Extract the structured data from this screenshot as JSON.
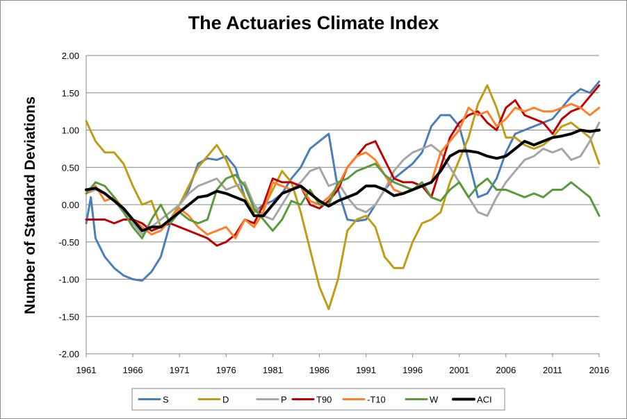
{
  "chart_data": {
    "type": "line",
    "title": "The Actuaries Climate Index",
    "xlabel": "",
    "ylabel": "Number of Standard Deviations",
    "xlim": [
      1961,
      2016
    ],
    "ylim": [
      -2.0,
      2.0
    ],
    "x_ticks": [
      "1961",
      "1966",
      "1971",
      "1976",
      "1981",
      "1986",
      "1991",
      "1996",
      "2001",
      "2006",
      "2011",
      "2016"
    ],
    "y_ticks": [
      "2.00",
      "1.50",
      "1.00",
      "0.50",
      "0.00",
      "-0.50",
      "-1.00",
      "-1.50",
      "-2.00"
    ],
    "grid": true,
    "legend_position": "bottom",
    "series": [
      {
        "name": "S",
        "color": "#4a7ebb",
        "x": [
          1961,
          1961.5,
          1962,
          1963,
          1964,
          1965,
          1966,
          1967,
          1968,
          1969,
          1970,
          1971,
          1972,
          1973,
          1974,
          1975,
          1976,
          1977,
          1978,
          1979,
          1980,
          1981,
          1982,
          1983,
          1984,
          1985,
          1986,
          1987,
          1988,
          1989,
          1990,
          1991,
          1992,
          1993,
          1994,
          1995,
          1996,
          1997,
          1998,
          1999,
          2000,
          2001,
          2002,
          2003,
          2004,
          2005,
          2006,
          2007,
          2008,
          2009,
          2010,
          2011,
          2012,
          2013,
          2014,
          2015,
          2016
        ],
        "y": [
          -0.25,
          0.1,
          -0.45,
          -0.7,
          -0.85,
          -0.95,
          -1.0,
          -1.02,
          -0.9,
          -0.7,
          -0.25,
          0.0,
          0.2,
          0.55,
          0.62,
          0.6,
          0.65,
          0.5,
          0.1,
          -0.1,
          0.0,
          0.05,
          0.15,
          0.35,
          0.5,
          0.75,
          0.85,
          0.95,
          0.2,
          -0.2,
          -0.22,
          -0.2,
          0.0,
          0.2,
          0.35,
          0.45,
          0.55,
          0.7,
          1.05,
          1.2,
          1.2,
          1.05,
          0.6,
          0.1,
          0.15,
          0.35,
          0.7,
          0.95,
          1.0,
          1.05,
          1.1,
          1.15,
          1.3,
          1.45,
          1.55,
          1.5,
          1.65
        ]
      },
      {
        "name": "D",
        "color": "#c09b14",
        "x": [
          1961,
          1962,
          1963,
          1964,
          1965,
          1966,
          1967,
          1968,
          1969,
          1970,
          1971,
          1972,
          1973,
          1974,
          1975,
          1976,
          1977,
          1978,
          1979,
          1980,
          1981,
          1982,
          1983,
          1984,
          1985,
          1986,
          1987,
          1988,
          1989,
          1990,
          1991,
          1992,
          1993,
          1994,
          1995,
          1996,
          1997,
          1998,
          1999,
          2000,
          2001,
          2002,
          2003,
          2004,
          2005,
          2006,
          2007,
          2008,
          2009,
          2010,
          2011,
          2012,
          2013,
          2014,
          2015,
          2016
        ],
        "y": [
          1.12,
          0.85,
          0.7,
          0.7,
          0.55,
          0.25,
          0.0,
          0.05,
          -0.3,
          -0.2,
          0.0,
          0.25,
          0.5,
          0.65,
          0.8,
          0.6,
          0.3,
          0.1,
          -0.1,
          -0.05,
          0.2,
          0.45,
          0.3,
          -0.1,
          -0.6,
          -1.1,
          -1.4,
          -1.0,
          -0.35,
          -0.2,
          -0.15,
          -0.3,
          -0.7,
          -0.85,
          -0.85,
          -0.5,
          -0.25,
          -0.2,
          -0.1,
          0.3,
          0.6,
          0.9,
          1.35,
          1.6,
          1.3,
          0.9,
          0.9,
          0.8,
          0.75,
          0.8,
          0.9,
          1.05,
          1.1,
          1.0,
          0.9,
          0.55
        ]
      },
      {
        "name": "P",
        "color": "#a5a5a5",
        "x": [
          1961,
          1962,
          1963,
          1964,
          1965,
          1966,
          1967,
          1968,
          1969,
          1970,
          1971,
          1972,
          1973,
          1974,
          1975,
          1976,
          1977,
          1978,
          1979,
          1980,
          1981,
          1982,
          1983,
          1984,
          1985,
          1986,
          1987,
          1988,
          1989,
          1990,
          1991,
          1992,
          1993,
          1994,
          1995,
          1996,
          1997,
          1998,
          1999,
          2000,
          2001,
          2002,
          2003,
          2004,
          2005,
          2006,
          2007,
          2008,
          2009,
          2010,
          2011,
          2012,
          2013,
          2014,
          2015,
          2016
        ],
        "y": [
          0.15,
          0.2,
          0.15,
          0.05,
          -0.1,
          -0.25,
          -0.4,
          -0.3,
          -0.2,
          -0.1,
          0.0,
          0.15,
          0.25,
          0.3,
          0.35,
          0.2,
          0.25,
          0.3,
          0.0,
          -0.15,
          -0.2,
          0.0,
          0.2,
          0.3,
          0.45,
          0.5,
          0.25,
          0.3,
          0.1,
          -0.05,
          -0.1,
          0.0,
          0.2,
          0.45,
          0.6,
          0.7,
          0.75,
          0.8,
          0.7,
          0.5,
          0.3,
          0.1,
          -0.1,
          -0.15,
          0.1,
          0.3,
          0.45,
          0.6,
          0.65,
          0.75,
          0.7,
          0.75,
          0.6,
          0.65,
          0.85,
          1.1
        ]
      },
      {
        "name": "T90",
        "color": "#c00000",
        "x": [
          1961,
          1962,
          1963,
          1964,
          1965,
          1966,
          1967,
          1968,
          1969,
          1970,
          1971,
          1972,
          1973,
          1974,
          1975,
          1976,
          1977,
          1978,
          1979,
          1980,
          1981,
          1982,
          1983,
          1984,
          1985,
          1986,
          1987,
          1988,
          1989,
          1990,
          1991,
          1992,
          1993,
          1994,
          1995,
          1996,
          1997,
          1998,
          1999,
          2000,
          2001,
          2002,
          2003,
          2004,
          2005,
          2006,
          2007,
          2008,
          2009,
          2010,
          2011,
          2012,
          2013,
          2014,
          2015,
          2016
        ],
        "y": [
          -0.2,
          -0.2,
          -0.2,
          -0.25,
          -0.2,
          -0.2,
          -0.25,
          -0.35,
          -0.3,
          -0.25,
          -0.3,
          -0.35,
          -0.4,
          -0.45,
          -0.55,
          -0.5,
          -0.4,
          -0.2,
          -0.25,
          0.0,
          0.35,
          0.3,
          0.3,
          0.25,
          0.0,
          -0.05,
          0.05,
          0.2,
          0.5,
          0.65,
          0.8,
          0.85,
          0.6,
          0.35,
          0.3,
          0.3,
          0.25,
          0.1,
          0.5,
          0.9,
          1.1,
          1.2,
          1.25,
          1.1,
          1.0,
          1.3,
          1.4,
          1.2,
          1.15,
          1.1,
          0.95,
          1.15,
          1.25,
          1.3,
          1.45,
          1.6
        ]
      },
      {
        "name": "-T10",
        "color": "#ff7f27",
        "x": [
          1961,
          1962,
          1963,
          1964,
          1965,
          1966,
          1967,
          1968,
          1969,
          1970,
          1971,
          1972,
          1973,
          1974,
          1975,
          1976,
          1977,
          1978,
          1979,
          1980,
          1981,
          1982,
          1983,
          1984,
          1985,
          1986,
          1987,
          1988,
          1989,
          1990,
          1991,
          1992,
          1993,
          1994,
          1995,
          1996,
          1997,
          1998,
          1999,
          2000,
          2001,
          2002,
          2003,
          2004,
          2005,
          2006,
          2007,
          2008,
          2009,
          2010,
          2011,
          2012,
          2013,
          2014,
          2015,
          2016
        ],
        "y": [
          0.15,
          0.25,
          0.05,
          0.1,
          -0.05,
          -0.2,
          -0.3,
          -0.4,
          -0.35,
          -0.2,
          -0.05,
          -0.15,
          -0.3,
          -0.4,
          -0.35,
          -0.3,
          -0.45,
          -0.2,
          -0.3,
          -0.1,
          0.3,
          0.25,
          0.2,
          0.25,
          0.05,
          0.0,
          0.1,
          0.25,
          0.5,
          0.65,
          0.7,
          0.6,
          0.4,
          0.2,
          0.15,
          0.2,
          0.25,
          0.3,
          0.7,
          0.85,
          1.0,
          1.3,
          1.2,
          1.25,
          1.05,
          1.15,
          1.3,
          1.25,
          1.3,
          1.25,
          1.25,
          1.3,
          1.35,
          1.3,
          1.2,
          1.3
        ]
      },
      {
        "name": "W",
        "color": "#5b9a3c",
        "x": [
          1961,
          1962,
          1963,
          1964,
          1965,
          1966,
          1967,
          1968,
          1969,
          1970,
          1971,
          1972,
          1973,
          1974,
          1975,
          1976,
          1977,
          1978,
          1979,
          1980,
          1981,
          1982,
          1983,
          1984,
          1985,
          1986,
          1987,
          1988,
          1989,
          1990,
          1991,
          1992,
          1993,
          1994,
          1995,
          1996,
          1997,
          1998,
          1999,
          2000,
          2001,
          2002,
          2003,
          2004,
          2005,
          2006,
          2007,
          2008,
          2009,
          2010,
          2011,
          2012,
          2013,
          2014,
          2015,
          2016
        ],
        "y": [
          0.15,
          0.3,
          0.25,
          0.1,
          -0.1,
          -0.3,
          -0.45,
          -0.2,
          0.0,
          -0.25,
          -0.1,
          -0.2,
          -0.25,
          -0.2,
          0.2,
          0.35,
          0.4,
          0.25,
          -0.05,
          -0.2,
          -0.35,
          -0.2,
          0.05,
          0.0,
          0.2,
          0.0,
          0.0,
          0.3,
          0.35,
          0.45,
          0.5,
          0.55,
          0.4,
          0.3,
          0.25,
          0.2,
          0.3,
          0.1,
          0.05,
          0.2,
          0.3,
          0.1,
          0.25,
          0.35,
          0.2,
          0.2,
          0.15,
          0.1,
          0.15,
          0.1,
          0.2,
          0.2,
          0.3,
          0.2,
          0.1,
          -0.15
        ]
      },
      {
        "name": "ACI",
        "color": "#000000",
        "x": [
          1961,
          1962,
          1963,
          1964,
          1965,
          1966,
          1967,
          1968,
          1969,
          1970,
          1971,
          1972,
          1973,
          1974,
          1975,
          1976,
          1977,
          1978,
          1979,
          1980,
          1981,
          1982,
          1983,
          1984,
          1985,
          1986,
          1987,
          1988,
          1989,
          1990,
          1991,
          1992,
          1993,
          1994,
          1995,
          1996,
          1997,
          1998,
          1999,
          2000,
          2001,
          2002,
          2003,
          2004,
          2005,
          2006,
          2007,
          2008,
          2009,
          2010,
          2011,
          2012,
          2013,
          2014,
          2015,
          2016
        ],
        "y": [
          0.2,
          0.22,
          0.15,
          0.05,
          -0.05,
          -0.2,
          -0.35,
          -0.3,
          -0.3,
          -0.2,
          -0.1,
          0.0,
          0.1,
          0.12,
          0.18,
          0.15,
          0.1,
          0.05,
          -0.15,
          -0.15,
          0.0,
          0.15,
          0.2,
          0.25,
          0.15,
          0.05,
          -0.02,
          0.05,
          0.1,
          0.15,
          0.25,
          0.25,
          0.2,
          0.12,
          0.15,
          0.2,
          0.25,
          0.3,
          0.45,
          0.65,
          0.72,
          0.72,
          0.7,
          0.65,
          0.62,
          0.65,
          0.75,
          0.85,
          0.8,
          0.85,
          0.9,
          0.92,
          0.95,
          1.0,
          0.98,
          1.0
        ]
      }
    ]
  }
}
